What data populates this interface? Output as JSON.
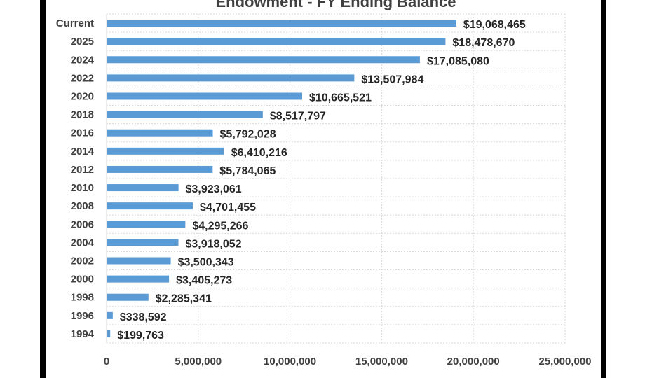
{
  "chart_data": {
    "type": "bar",
    "orientation": "horizontal",
    "title": "Endowment - FY Ending Balance",
    "categories": [
      "Current",
      "2025",
      "2024",
      "2022",
      "2020",
      "2018",
      "2016",
      "2014",
      "2012",
      "2010",
      "2008",
      "2006",
      "2004",
      "2002",
      "2000",
      "1998",
      "1996",
      "1994"
    ],
    "values": [
      19068465,
      18478670,
      17085080,
      13507984,
      10665521,
      8517797,
      5792028,
      6410216,
      5784065,
      3923061,
      4701455,
      4295266,
      3918052,
      3500343,
      3405273,
      2285341,
      338592,
      199763
    ],
    "value_labels": [
      "$19,068,465",
      "$18,478,670",
      "$17,085,080",
      "$13,507,984",
      "$10,665,521",
      "$8,517,797",
      "$5,792,028",
      "$6,410,216",
      "$5,784,065",
      "$3,923,061",
      "$4,701,455",
      "$4,295,266",
      "$3,918,052",
      "$3,500,343",
      "$3,405,273",
      "$2,285,341",
      "$338,592",
      "$199,763"
    ],
    "x_ticks": [
      0,
      5000000,
      10000000,
      15000000,
      20000000,
      25000000
    ],
    "x_tick_labels": [
      "0",
      "5,000,000",
      "10,000,000",
      "15,000,000",
      "20,000,000",
      "25,000,000"
    ],
    "xlim": [
      0,
      25000000
    ],
    "grid": true,
    "legend": "none",
    "bar_color": "#5b9bd5"
  }
}
